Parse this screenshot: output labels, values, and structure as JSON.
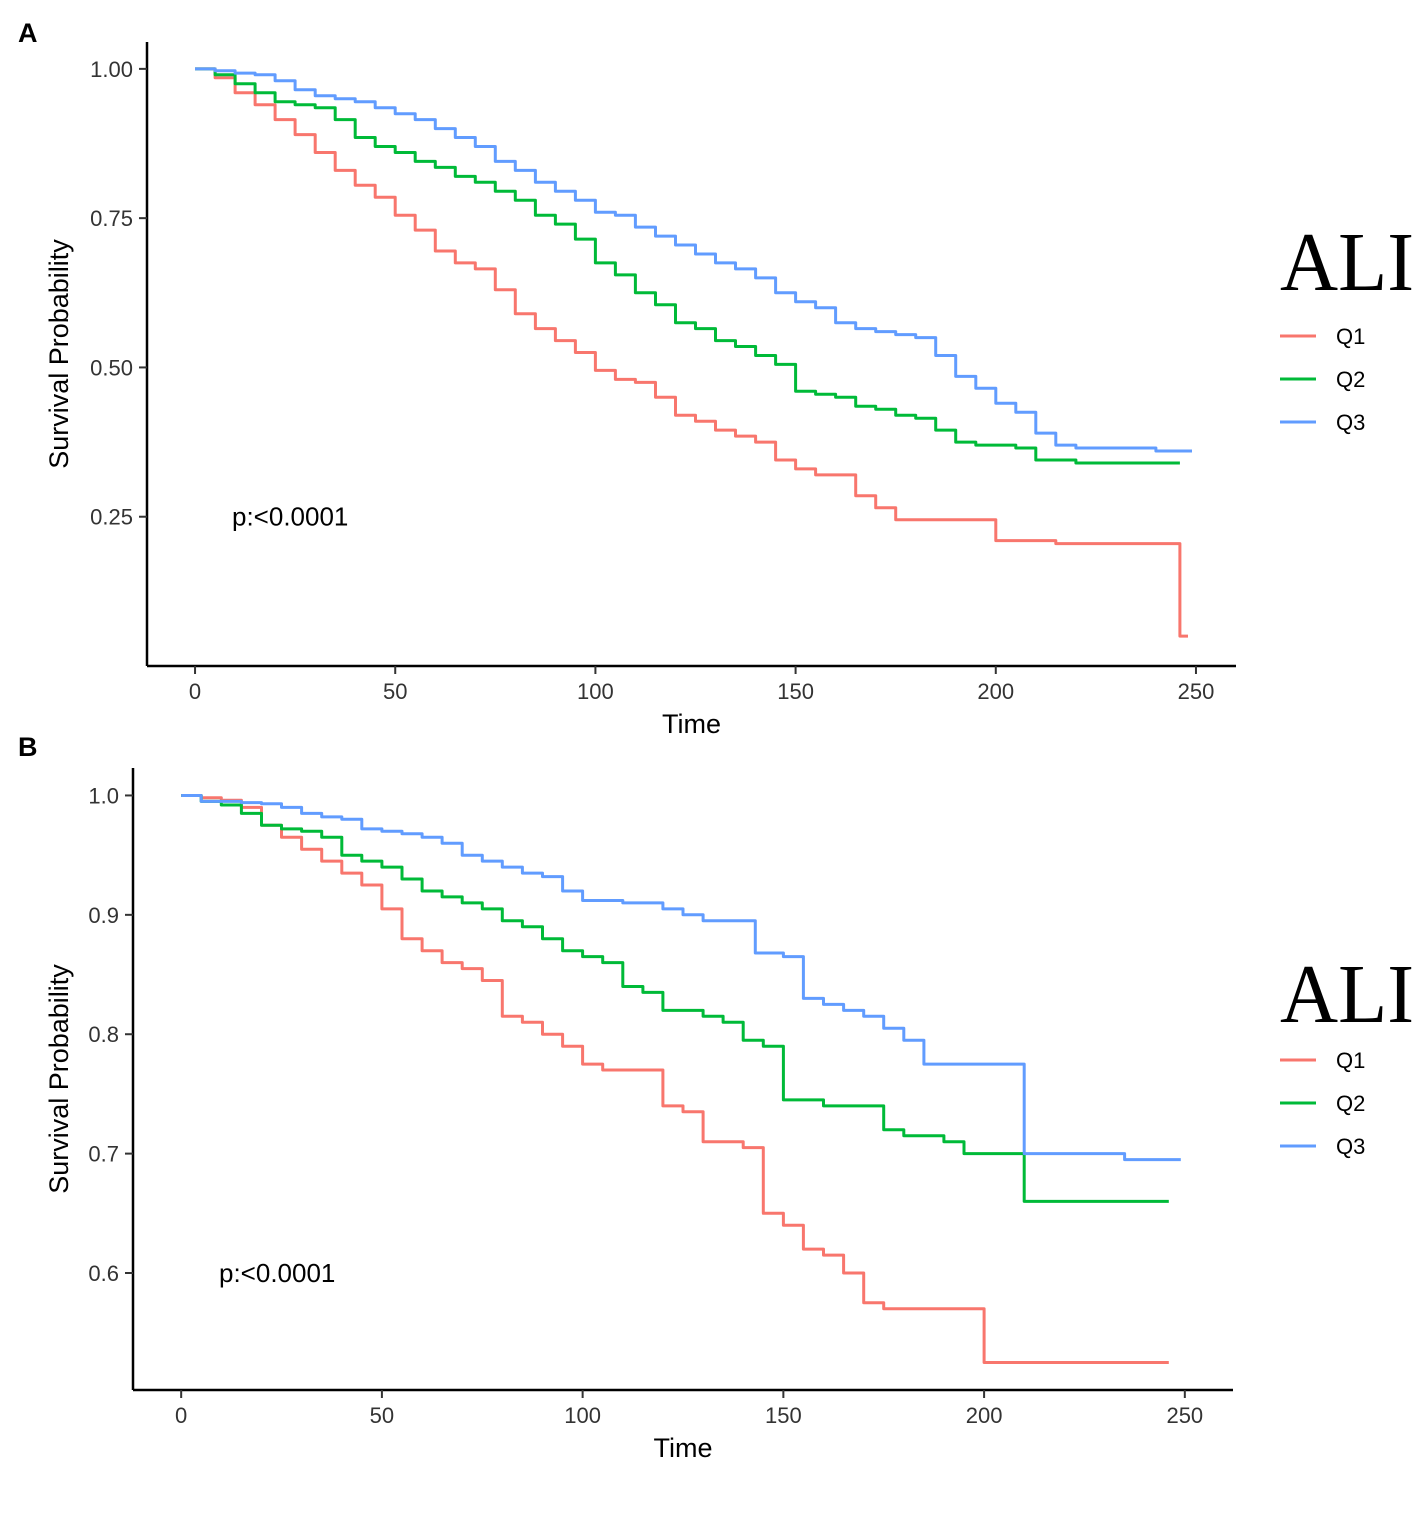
{
  "colors": {
    "Q1": "#F8766D",
    "Q2": "#00BA38",
    "Q3": "#619CFF"
  },
  "chart_data": [
    {
      "panel": "A",
      "type": "line",
      "step": true,
      "xlabel": "Time",
      "ylabel": "Survival Probability",
      "xticks": [
        0,
        50,
        100,
        150,
        200,
        250
      ],
      "xtick_labels": [
        "0",
        "50",
        "100",
        "150",
        "200",
        "250"
      ],
      "yticks": [
        0.25,
        0.5,
        0.75,
        1.0
      ],
      "ytick_labels": [
        "0.25",
        "0.50",
        "0.75",
        "1.00"
      ],
      "xlim": [
        -12,
        260
      ],
      "ylim": [
        0.0,
        1.045
      ],
      "annotation": "p:<0.0001",
      "annotation_pos": [
        9,
        0.25
      ],
      "legend_title": "ALI",
      "legend_position": "right",
      "series": [
        {
          "name": "Q1",
          "color": "#F8766D",
          "points": [
            [
              0,
              1.0
            ],
            [
              5,
              0.985
            ],
            [
              10,
              0.96
            ],
            [
              15,
              0.94
            ],
            [
              20,
              0.915
            ],
            [
              25,
              0.89
            ],
            [
              30,
              0.86
            ],
            [
              35,
              0.83
            ],
            [
              40,
              0.805
            ],
            [
              45,
              0.785
            ],
            [
              50,
              0.755
            ],
            [
              55,
              0.73
            ],
            [
              60,
              0.695
            ],
            [
              65,
              0.675
            ],
            [
              70,
              0.665
            ],
            [
              75,
              0.63
            ],
            [
              80,
              0.59
            ],
            [
              85,
              0.565
            ],
            [
              90,
              0.545
            ],
            [
              95,
              0.525
            ],
            [
              100,
              0.495
            ],
            [
              105,
              0.48
            ],
            [
              110,
              0.475
            ],
            [
              115,
              0.45
            ],
            [
              120,
              0.42
            ],
            [
              125,
              0.41
            ],
            [
              130,
              0.395
            ],
            [
              135,
              0.385
            ],
            [
              140,
              0.375
            ],
            [
              145,
              0.345
            ],
            [
              150,
              0.33
            ],
            [
              155,
              0.32
            ],
            [
              160,
              0.32
            ],
            [
              165,
              0.285
            ],
            [
              170,
              0.265
            ],
            [
              175,
              0.245
            ],
            [
              185,
              0.245
            ],
            [
              195,
              0.245
            ],
            [
              200,
              0.21
            ],
            [
              210,
              0.21
            ],
            [
              215,
              0.205
            ],
            [
              236,
              0.205
            ],
            [
              246,
              0.05
            ],
            [
              248,
              0.05
            ]
          ]
        },
        {
          "name": "Q2",
          "color": "#00BA38",
          "points": [
            [
              0,
              1.0
            ],
            [
              5,
              0.99
            ],
            [
              10,
              0.975
            ],
            [
              15,
              0.96
            ],
            [
              20,
              0.945
            ],
            [
              25,
              0.94
            ],
            [
              30,
              0.935
            ],
            [
              35,
              0.915
            ],
            [
              40,
              0.885
            ],
            [
              45,
              0.87
            ],
            [
              50,
              0.86
            ],
            [
              55,
              0.845
            ],
            [
              60,
              0.835
            ],
            [
              65,
              0.82
            ],
            [
              70,
              0.81
            ],
            [
              75,
              0.795
            ],
            [
              80,
              0.78
            ],
            [
              85,
              0.755
            ],
            [
              90,
              0.74
            ],
            [
              95,
              0.715
            ],
            [
              100,
              0.675
            ],
            [
              105,
              0.655
            ],
            [
              110,
              0.625
            ],
            [
              115,
              0.605
            ],
            [
              120,
              0.575
            ],
            [
              125,
              0.565
            ],
            [
              130,
              0.545
            ],
            [
              135,
              0.535
            ],
            [
              140,
              0.52
            ],
            [
              145,
              0.505
            ],
            [
              150,
              0.46
            ],
            [
              155,
              0.455
            ],
            [
              160,
              0.45
            ],
            [
              165,
              0.435
            ],
            [
              170,
              0.43
            ],
            [
              175,
              0.42
            ],
            [
              180,
              0.415
            ],
            [
              185,
              0.395
            ],
            [
              190,
              0.375
            ],
            [
              195,
              0.37
            ],
            [
              200,
              0.37
            ],
            [
              205,
              0.365
            ],
            [
              210,
              0.345
            ],
            [
              215,
              0.345
            ],
            [
              220,
              0.34
            ],
            [
              246,
              0.34
            ]
          ]
        },
        {
          "name": "Q3",
          "color": "#619CFF",
          "points": [
            [
              0,
              1.0
            ],
            [
              5,
              0.997
            ],
            [
              10,
              0.993
            ],
            [
              15,
              0.99
            ],
            [
              20,
              0.98
            ],
            [
              25,
              0.965
            ],
            [
              30,
              0.955
            ],
            [
              35,
              0.95
            ],
            [
              40,
              0.945
            ],
            [
              45,
              0.935
            ],
            [
              50,
              0.925
            ],
            [
              55,
              0.915
            ],
            [
              60,
              0.9
            ],
            [
              65,
              0.885
            ],
            [
              70,
              0.87
            ],
            [
              75,
              0.845
            ],
            [
              80,
              0.83
            ],
            [
              85,
              0.81
            ],
            [
              90,
              0.795
            ],
            [
              95,
              0.78
            ],
            [
              100,
              0.76
            ],
            [
              105,
              0.755
            ],
            [
              110,
              0.735
            ],
            [
              115,
              0.72
            ],
            [
              120,
              0.705
            ],
            [
              125,
              0.69
            ],
            [
              130,
              0.675
            ],
            [
              135,
              0.665
            ],
            [
              140,
              0.65
            ],
            [
              145,
              0.625
            ],
            [
              150,
              0.61
            ],
            [
              155,
              0.6
            ],
            [
              160,
              0.575
            ],
            [
              165,
              0.565
            ],
            [
              170,
              0.56
            ],
            [
              175,
              0.555
            ],
            [
              180,
              0.55
            ],
            [
              185,
              0.52
            ],
            [
              190,
              0.485
            ],
            [
              195,
              0.465
            ],
            [
              200,
              0.44
            ],
            [
              205,
              0.425
            ],
            [
              210,
              0.39
            ],
            [
              215,
              0.37
            ],
            [
              220,
              0.365
            ],
            [
              230,
              0.365
            ],
            [
              240,
              0.36
            ],
            [
              249,
              0.36
            ]
          ]
        }
      ]
    },
    {
      "panel": "B",
      "type": "line",
      "step": true,
      "xlabel": "Time",
      "ylabel": "Survival Probability",
      "xticks": [
        0,
        50,
        100,
        150,
        200,
        250
      ],
      "xtick_labels": [
        "0",
        "50",
        "100",
        "150",
        "200",
        "250"
      ],
      "yticks": [
        0.6,
        0.7,
        0.8,
        0.9,
        1.0
      ],
      "ytick_labels": [
        "0.6",
        "0.7",
        "0.8",
        "0.9",
        "1.0"
      ],
      "xlim": [
        -12,
        262
      ],
      "ylim": [
        0.502,
        1.023
      ],
      "annotation": "p:<0.0001",
      "annotation_pos": [
        9,
        0.6
      ],
      "legend_title": "ALI",
      "legend_position": "right",
      "series": [
        {
          "name": "Q1",
          "color": "#F8766D",
          "points": [
            [
              0,
              1.0
            ],
            [
              5,
              0.998
            ],
            [
              10,
              0.996
            ],
            [
              15,
              0.99
            ],
            [
              20,
              0.975
            ],
            [
              25,
              0.965
            ],
            [
              30,
              0.955
            ],
            [
              35,
              0.945
            ],
            [
              40,
              0.935
            ],
            [
              45,
              0.925
            ],
            [
              50,
              0.905
            ],
            [
              55,
              0.88
            ],
            [
              60,
              0.87
            ],
            [
              65,
              0.86
            ],
            [
              70,
              0.855
            ],
            [
              75,
              0.845
            ],
            [
              80,
              0.815
            ],
            [
              85,
              0.81
            ],
            [
              90,
              0.8
            ],
            [
              95,
              0.79
            ],
            [
              100,
              0.775
            ],
            [
              105,
              0.77
            ],
            [
              115,
              0.77
            ],
            [
              120,
              0.74
            ],
            [
              125,
              0.735
            ],
            [
              130,
              0.71
            ],
            [
              140,
              0.705
            ],
            [
              145,
              0.65
            ],
            [
              150,
              0.64
            ],
            [
              155,
              0.62
            ],
            [
              160,
              0.615
            ],
            [
              165,
              0.6
            ],
            [
              170,
              0.575
            ],
            [
              175,
              0.57
            ],
            [
              185,
              0.57
            ],
            [
              195,
              0.57
            ],
            [
              200,
              0.525
            ],
            [
              230,
              0.525
            ],
            [
              246,
              0.525
            ]
          ]
        },
        {
          "name": "Q2",
          "color": "#00BA38",
          "points": [
            [
              0,
              1.0
            ],
            [
              5,
              0.995
            ],
            [
              10,
              0.992
            ],
            [
              15,
              0.985
            ],
            [
              20,
              0.975
            ],
            [
              25,
              0.972
            ],
            [
              30,
              0.97
            ],
            [
              35,
              0.965
            ],
            [
              40,
              0.95
            ],
            [
              45,
              0.945
            ],
            [
              50,
              0.94
            ],
            [
              55,
              0.93
            ],
            [
              60,
              0.92
            ],
            [
              65,
              0.915
            ],
            [
              70,
              0.91
            ],
            [
              75,
              0.905
            ],
            [
              80,
              0.895
            ],
            [
              85,
              0.89
            ],
            [
              90,
              0.88
            ],
            [
              95,
              0.87
            ],
            [
              100,
              0.865
            ],
            [
              105,
              0.86
            ],
            [
              110,
              0.84
            ],
            [
              115,
              0.835
            ],
            [
              120,
              0.82
            ],
            [
              125,
              0.82
            ],
            [
              130,
              0.815
            ],
            [
              135,
              0.81
            ],
            [
              140,
              0.795
            ],
            [
              145,
              0.79
            ],
            [
              150,
              0.745
            ],
            [
              160,
              0.74
            ],
            [
              170,
              0.74
            ],
            [
              175,
              0.72
            ],
            [
              180,
              0.715
            ],
            [
              190,
              0.71
            ],
            [
              195,
              0.7
            ],
            [
              205,
              0.7
            ],
            [
              210,
              0.66
            ],
            [
              246,
              0.66
            ]
          ]
        },
        {
          "name": "Q3",
          "color": "#619CFF",
          "points": [
            [
              0,
              1.0
            ],
            [
              5,
              0.995
            ],
            [
              10,
              0.995
            ],
            [
              15,
              0.994
            ],
            [
              20,
              0.993
            ],
            [
              25,
              0.99
            ],
            [
              30,
              0.985
            ],
            [
              35,
              0.982
            ],
            [
              40,
              0.98
            ],
            [
              45,
              0.972
            ],
            [
              50,
              0.97
            ],
            [
              55,
              0.968
            ],
            [
              60,
              0.965
            ],
            [
              65,
              0.96
            ],
            [
              70,
              0.95
            ],
            [
              75,
              0.945
            ],
            [
              80,
              0.94
            ],
            [
              85,
              0.935
            ],
            [
              90,
              0.932
            ],
            [
              95,
              0.92
            ],
            [
              100,
              0.912
            ],
            [
              110,
              0.91
            ],
            [
              115,
              0.91
            ],
            [
              120,
              0.905
            ],
            [
              125,
              0.9
            ],
            [
              130,
              0.895
            ],
            [
              135,
              0.895
            ],
            [
              140,
              0.895
            ],
            [
              143,
              0.868
            ],
            [
              150,
              0.865
            ],
            [
              155,
              0.83
            ],
            [
              160,
              0.825
            ],
            [
              165,
              0.82
            ],
            [
              170,
              0.815
            ],
            [
              175,
              0.805
            ],
            [
              180,
              0.795
            ],
            [
              185,
              0.775
            ],
            [
              195,
              0.775
            ],
            [
              207,
              0.775
            ],
            [
              210,
              0.7
            ],
            [
              220,
              0.7
            ],
            [
              235,
              0.695
            ],
            [
              249,
              0.695
            ]
          ]
        }
      ]
    }
  ]
}
